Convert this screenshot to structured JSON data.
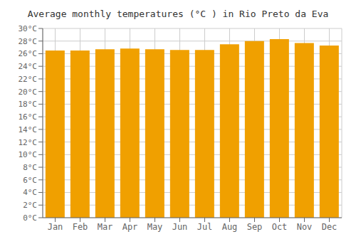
{
  "chart_data": {
    "type": "bar",
    "title": "Average monthly temperatures (°C ) in Rio Preto da Eva",
    "categories": [
      "Jan",
      "Feb",
      "Mar",
      "Apr",
      "May",
      "Jun",
      "Jul",
      "Aug",
      "Sep",
      "Oct",
      "Nov",
      "Dec"
    ],
    "values": [
      26.5,
      26.5,
      26.7,
      26.8,
      26.7,
      26.6,
      26.6,
      27.5,
      28.0,
      28.3,
      27.7,
      27.3
    ],
    "color": "#F0A000",
    "ylim": [
      0,
      30
    ],
    "yticks": [
      {
        "value": 0,
        "label": "0°C"
      },
      {
        "value": 2,
        "label": "2°C"
      },
      {
        "value": 4,
        "label": "4°C"
      },
      {
        "value": 6,
        "label": "6°C"
      },
      {
        "value": 8,
        "label": "8°C"
      },
      {
        "value": 10,
        "label": "10°C"
      },
      {
        "value": 12,
        "label": "12°C"
      },
      {
        "value": 14,
        "label": "14°C"
      },
      {
        "value": 16,
        "label": "16°C"
      },
      {
        "value": 18,
        "label": "18°C"
      },
      {
        "value": 20,
        "label": "20°C"
      },
      {
        "value": 22,
        "label": "22°C"
      },
      {
        "value": 24,
        "label": "24°C"
      },
      {
        "value": 26,
        "label": "26°C"
      },
      {
        "value": 28,
        "label": "28°C"
      },
      {
        "value": 30,
        "label": "30°C"
      }
    ],
    "grid": true
  }
}
